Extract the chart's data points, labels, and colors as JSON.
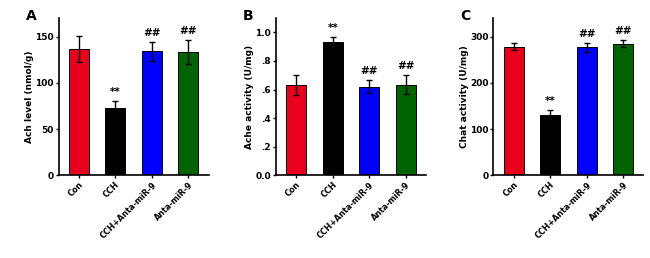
{
  "panel_A": {
    "title": "A",
    "ylabel": "Ach level (nmol/g)",
    "categories": [
      "Con",
      "CCH",
      "CCH+Anta-miR-9",
      "Anta-miR-9"
    ],
    "values": [
      137,
      73,
      134,
      133
    ],
    "errors": [
      14,
      7,
      10,
      13
    ],
    "colors": [
      "#e8001c",
      "#000000",
      "#0000ff",
      "#006400"
    ],
    "ylim": [
      0,
      170
    ],
    "yticks": [
      0,
      50,
      100,
      150
    ],
    "sig_above": [
      "",
      "**",
      "##",
      "##"
    ]
  },
  "panel_B": {
    "title": "B",
    "ylabel": "Ache activity (U/mg)",
    "categories": [
      "Con",
      "CCH",
      "CCH+Anta-miR-9",
      "Anta-miR-9"
    ],
    "values": [
      0.635,
      0.93,
      0.62,
      0.635
    ],
    "errors": [
      0.07,
      0.04,
      0.045,
      0.065
    ],
    "colors": [
      "#e8001c",
      "#000000",
      "#0000ff",
      "#006400"
    ],
    "ylim": [
      0.0,
      1.1
    ],
    "yticks": [
      0.0,
      0.2,
      0.4,
      0.6,
      0.8,
      1.0
    ],
    "yticklabels": [
      "0.0",
      ".2",
      ".4",
      ".6",
      ".8",
      "1.0"
    ],
    "sig_above": [
      "",
      "**",
      "##",
      "##"
    ]
  },
  "panel_C": {
    "title": "C",
    "ylabel": "Chat activity (U/mg)",
    "categories": [
      "Con",
      "CCH",
      "CCH+Anta-miR-9",
      "Anta-miR-9"
    ],
    "values": [
      278,
      130,
      277,
      285
    ],
    "errors": [
      8,
      12,
      10,
      8
    ],
    "colors": [
      "#e8001c",
      "#000000",
      "#0000ff",
      "#006400"
    ],
    "ylim": [
      0,
      340
    ],
    "yticks": [
      0,
      100,
      200,
      300
    ],
    "sig_above": [
      "",
      "**",
      "##",
      "##"
    ]
  },
  "bar_width": 0.55,
  "background_color": "#ffffff"
}
